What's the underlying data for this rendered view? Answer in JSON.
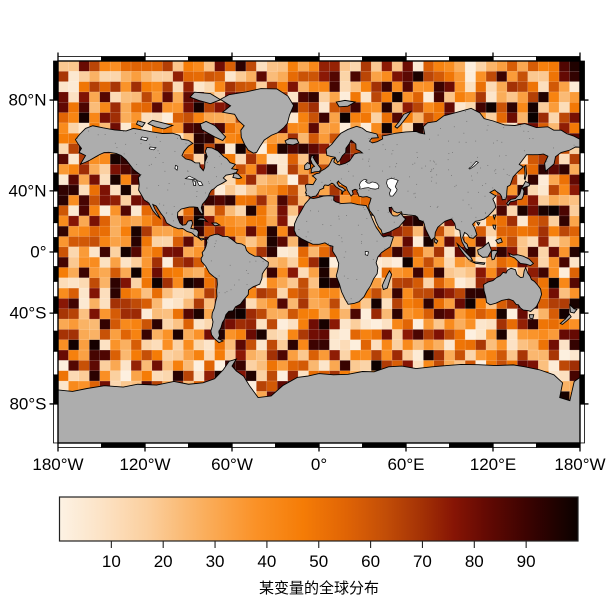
{
  "title": "某变量的全球分布",
  "figure": {
    "background": "#ffffff",
    "land_color": "#adadad",
    "coast_color": "#000000",
    "lake_color": "#ffffff",
    "frame_black": "#000000",
    "frame_white": "#ffffff",
    "text_color": "#000000"
  },
  "axes": {
    "x_ticks": [
      {
        "lon": -180,
        "label": "180°W"
      },
      {
        "lon": -120,
        "label": "120°W"
      },
      {
        "lon": -60,
        "label": "60°W"
      },
      {
        "lon": 0,
        "label": "0°"
      },
      {
        "lon": 60,
        "label": "60°E"
      },
      {
        "lon": 120,
        "label": "120°E"
      },
      {
        "lon": 180,
        "label": "180°W"
      }
    ],
    "y_ticks": [
      {
        "lat": 80,
        "label": "80°N"
      },
      {
        "lat": 40,
        "label": "40°N"
      },
      {
        "lat": 0,
        "label": "0°"
      },
      {
        "lat": -40,
        "label": "40°S"
      },
      {
        "lat": -80,
        "label": "80°S"
      }
    ],
    "frame_block_deg_lon": 30,
    "frame_block_deg_lat": 10
  },
  "colorbar": {
    "label": "某变量的全球分布",
    "ticks": [
      {
        "value": 10,
        "label": "10"
      },
      {
        "value": 20,
        "label": "20"
      },
      {
        "value": 30,
        "label": "30"
      },
      {
        "value": 40,
        "label": "40"
      },
      {
        "value": 50,
        "label": "50"
      },
      {
        "value": 60,
        "label": "60"
      },
      {
        "value": 70,
        "label": "70"
      },
      {
        "value": 80,
        "label": "80"
      },
      {
        "value": 90,
        "label": "90"
      }
    ],
    "value_range": [
      0,
      100
    ]
  },
  "chart_data": {
    "type": "heatmap",
    "projection": "miller",
    "title": "某变量的全球分布",
    "colorbar_label": "某变量的全球分布",
    "lon_range": [
      -180,
      180
    ],
    "lat_range": [
      -90,
      90
    ],
    "grid_cols": 50,
    "grid_rows": 37,
    "value_range": [
      1,
      100
    ],
    "random_seed": 1337,
    "colormap_stops": [
      {
        "t": 0.0,
        "c": "#fdf2e4"
      },
      {
        "t": 0.08,
        "c": "#fce3c6"
      },
      {
        "t": 0.17,
        "c": "#fbcf9e"
      },
      {
        "t": 0.28,
        "c": "#faae5c"
      },
      {
        "t": 0.38,
        "c": "#fa9126"
      },
      {
        "t": 0.47,
        "c": "#f57c06"
      },
      {
        "t": 0.55,
        "c": "#e16505"
      },
      {
        "t": 0.63,
        "c": "#c24d07"
      },
      {
        "t": 0.7,
        "c": "#a33105"
      },
      {
        "t": 0.76,
        "c": "#871505"
      },
      {
        "t": 0.82,
        "c": "#650a03"
      },
      {
        "t": 0.9,
        "c": "#3c0301"
      },
      {
        "t": 1.0,
        "c": "#0b0100"
      }
    ]
  }
}
